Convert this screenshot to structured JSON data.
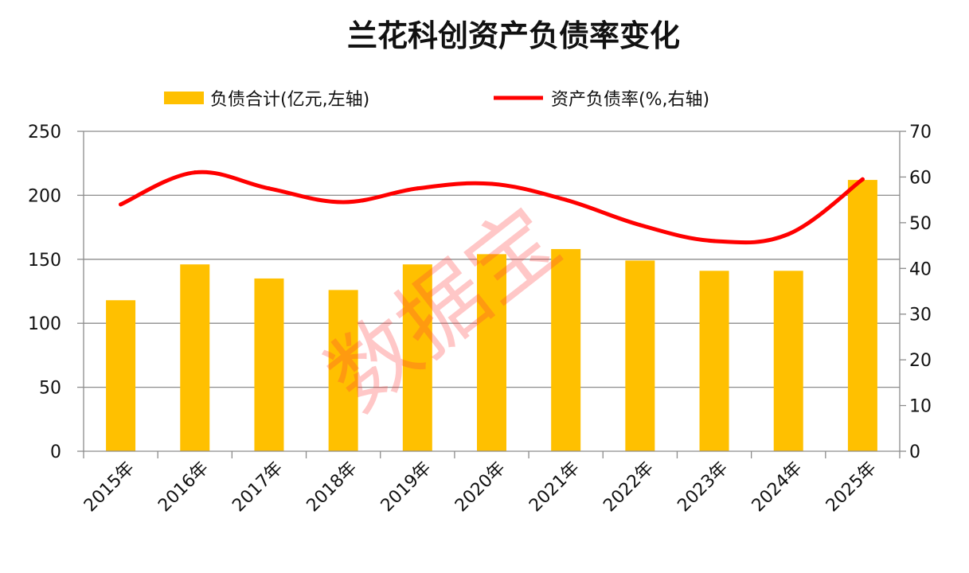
{
  "chart_data": {
    "type": "bar",
    "title": "兰花科创资产负债率变化",
    "categories": [
      "2015年",
      "2016年",
      "2017年",
      "2018年",
      "2019年",
      "2020年",
      "2021年",
      "2022年",
      "2023年",
      "2024年",
      "2025年"
    ],
    "series": [
      {
        "name": "负债合计(亿元,左轴)",
        "type": "bar",
        "axis": "left",
        "color": "#FFC000",
        "values": [
          118,
          146,
          135,
          126,
          146,
          154,
          158,
          149,
          141,
          141,
          212
        ]
      },
      {
        "name": "资产负债率(%,右轴)",
        "type": "line",
        "axis": "right",
        "color": "#FF0000",
        "values": [
          54,
          61,
          57.5,
          54.5,
          57.5,
          58.5,
          55,
          49.5,
          46,
          47.5,
          59.5
        ]
      }
    ],
    "y_left": {
      "min": 0,
      "max": 250,
      "ticks": [
        "0",
        "50",
        "100",
        "150",
        "200",
        "250"
      ]
    },
    "y_right": {
      "min": 0,
      "max": 70,
      "ticks": [
        "0",
        "10",
        "20",
        "30",
        "40",
        "50",
        "60",
        "70"
      ]
    },
    "grid": true,
    "legend": "top"
  },
  "watermark": "数据宝"
}
